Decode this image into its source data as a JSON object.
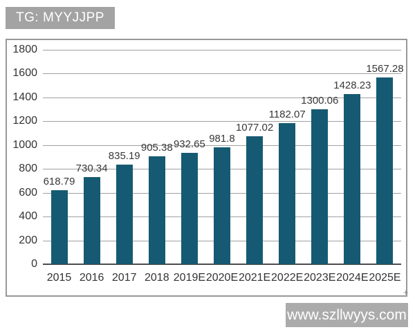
{
  "header": {
    "tag_label": "TG: MYYJJPP"
  },
  "footer": {
    "watermark": "www.szllwyys.com"
  },
  "colors": {
    "bar": "#155a72",
    "gridline": "#a0a0a0",
    "axis": "#4b4b4b",
    "frame_border": "#989898",
    "label_box_bg": "#a3a3a3",
    "watermark_bg": "#ababab",
    "text": "#333333",
    "label_text": "#ffffff"
  },
  "chart_data": {
    "type": "bar",
    "title": "",
    "xlabel": "",
    "ylabel": "",
    "categories": [
      "2015",
      "2016",
      "2017",
      "2018",
      "2019E",
      "2020E",
      "2021E",
      "2022E",
      "2023E",
      "2024E",
      "2025E"
    ],
    "values": [
      618.79,
      730.34,
      835.19,
      905.38,
      932.65,
      981.8,
      1077.02,
      1182.07,
      1300.06,
      1428.23,
      1567.28
    ],
    "value_labels": [
      "618.79",
      "730.34",
      "835.19",
      "905.38",
      "932.65",
      "981.8",
      "1077.02",
      "1182.07",
      "1300.06",
      "1428.23",
      "1567.28"
    ],
    "ylim": [
      0,
      1800
    ],
    "ytick_step": 200,
    "ytick_labels": [
      "0",
      "200",
      "400",
      "600",
      "800",
      "1000",
      "1200",
      "1400",
      "1600",
      "1800"
    ],
    "grid": true,
    "legend": false,
    "bar_color": "#155a72"
  }
}
